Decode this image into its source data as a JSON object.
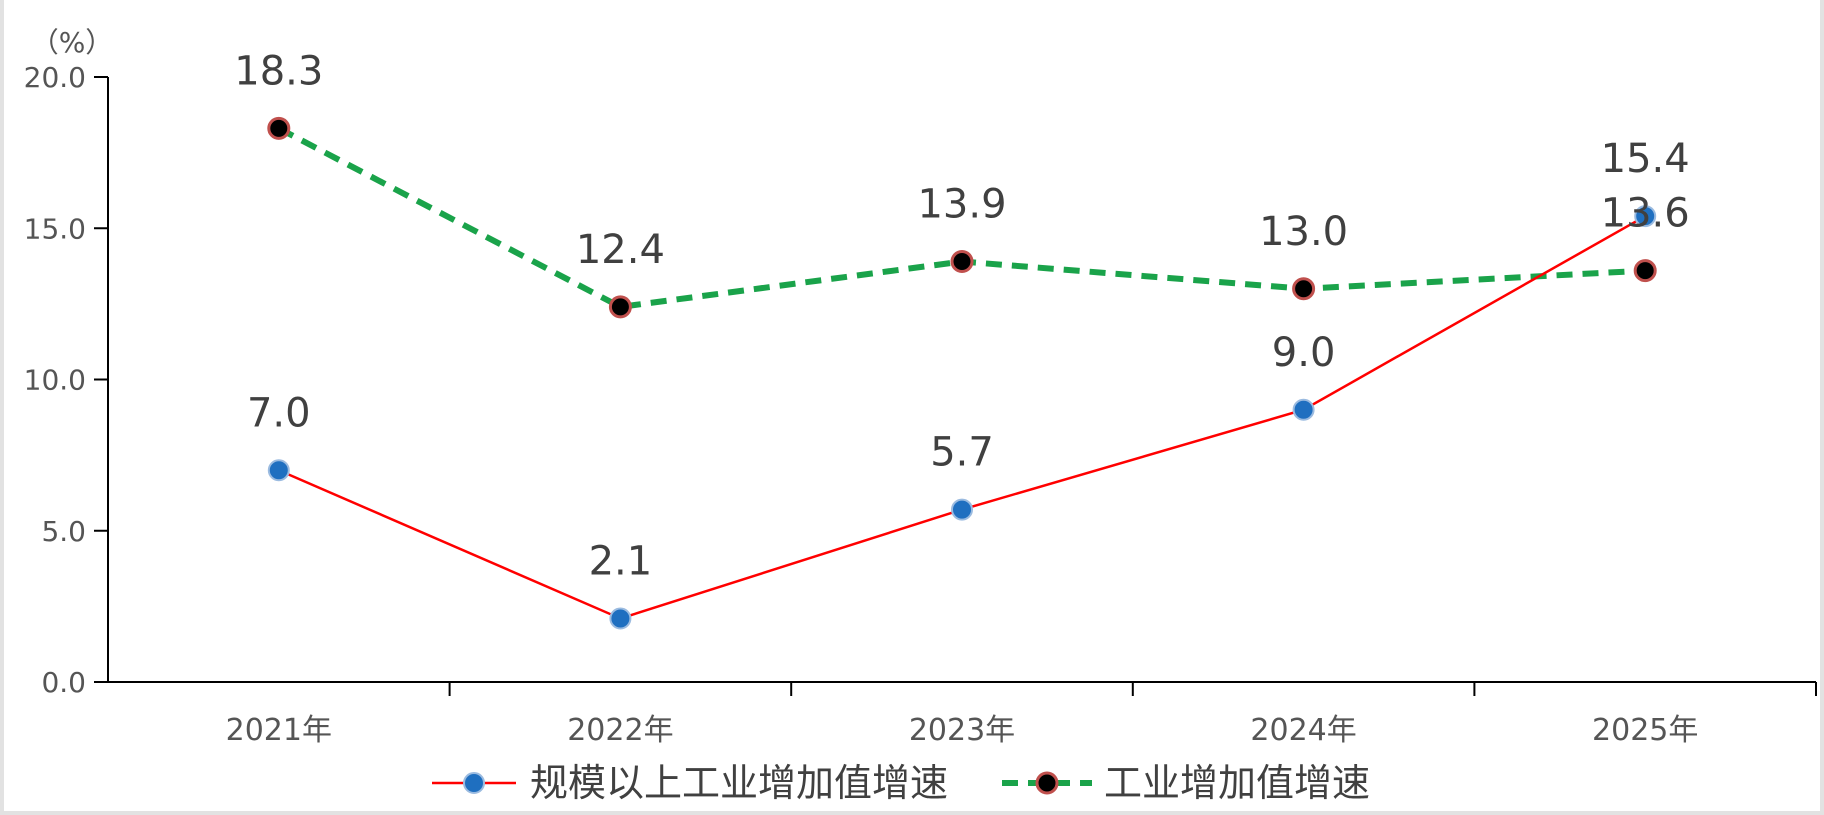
{
  "chart_data": {
    "type": "line",
    "unit_label": "（%）",
    "categories": [
      "2021年",
      "2022年",
      "2023年",
      "2024年",
      "2025年"
    ],
    "ylim": [
      0,
      20
    ],
    "yticks": [
      "0.0",
      "5.0",
      "10.0",
      "15.0",
      "20.0"
    ],
    "legend_position": "bottom",
    "series": [
      {
        "name": "规模以上工业增加值增速",
        "values": [
          7.0,
          2.1,
          5.7,
          9.0,
          15.4
        ],
        "labels": [
          "7.0",
          "2.1",
          "5.7",
          "9.0",
          "15.4"
        ],
        "line_color": "#ff0000",
        "line_style": "solid",
        "marker_color": "#1f6fc0"
      },
      {
        "name": "工业增加值增速",
        "values": [
          18.3,
          12.4,
          13.9,
          13.0,
          13.6
        ],
        "labels": [
          "18.3",
          "12.4",
          "13.9",
          "13.0",
          "13.6"
        ],
        "line_color": "#1aa34a",
        "line_style": "dashed",
        "marker_color": "#000000",
        "marker_edge_color": "#c0504d"
      }
    ]
  }
}
